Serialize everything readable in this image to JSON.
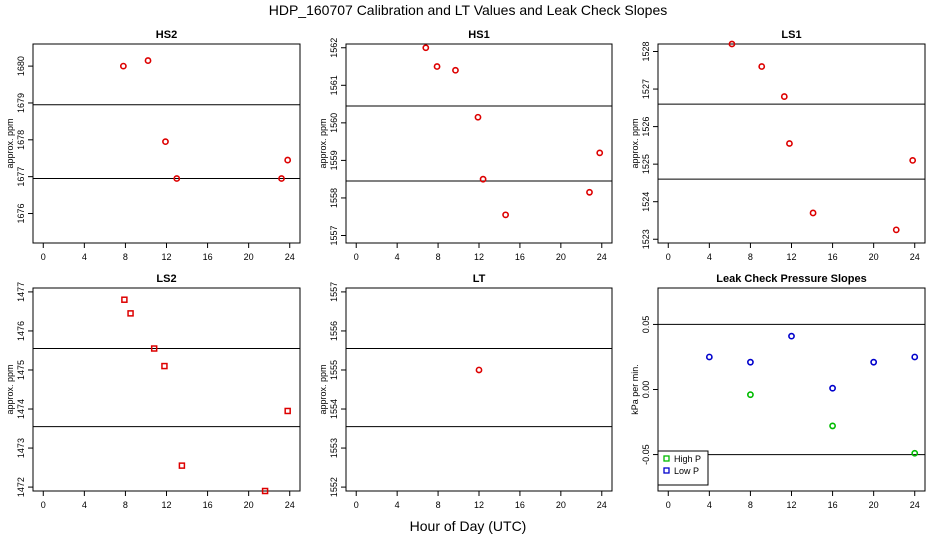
{
  "figure": {
    "title": "HDP_160707  Calibration and LT Values and Leak Check Slopes",
    "xlabel": "Hour of Day (UTC)"
  },
  "chart_data": [
    {
      "type": "scatter",
      "title": "HS2",
      "ylabel": "approx. ppm",
      "xlim": [
        -1,
        25
      ],
      "ylim": [
        1675.2,
        1680.6
      ],
      "xticks": [
        0,
        4,
        8,
        12,
        16,
        20,
        24
      ],
      "yticks": [
        1676,
        1677,
        1678,
        1679,
        1680
      ],
      "hlines": [
        1678.95,
        1676.95
      ],
      "series": [
        {
          "color": "#dd0000",
          "marker": "circle",
          "x": [
            7.8,
            10.2,
            11.9,
            13.0,
            23.2,
            23.8
          ],
          "y": [
            1680.0,
            1680.15,
            1677.95,
            1676.95,
            1676.95,
            1677.45
          ]
        }
      ]
    },
    {
      "type": "scatter",
      "title": "HS1",
      "ylabel": "approx. ppm",
      "xlim": [
        -1,
        25
      ],
      "ylim": [
        1556.8,
        1562.1
      ],
      "xticks": [
        0,
        4,
        8,
        12,
        16,
        20,
        24
      ],
      "yticks": [
        1557,
        1558,
        1559,
        1560,
        1561,
        1562
      ],
      "hlines": [
        1560.45,
        1558.45
      ],
      "series": [
        {
          "color": "#dd0000",
          "marker": "circle",
          "x": [
            6.8,
            7.9,
            9.7,
            11.9,
            12.4,
            14.6,
            22.8,
            23.8
          ],
          "y": [
            1562.0,
            1561.5,
            1561.4,
            1560.15,
            1558.5,
            1557.55,
            1558.15,
            1559.2
          ]
        }
      ]
    },
    {
      "type": "scatter",
      "title": "LS1",
      "ylabel": "approx. ppm",
      "xlim": [
        -1,
        25
      ],
      "ylim": [
        1522.9,
        1528.2
      ],
      "xticks": [
        0,
        4,
        8,
        12,
        16,
        20,
        24
      ],
      "yticks": [
        1523,
        1524,
        1525,
        1526,
        1527,
        1528
      ],
      "hlines": [
        1526.6,
        1524.6
      ],
      "series": [
        {
          "color": "#dd0000",
          "marker": "circle",
          "x": [
            6.2,
            9.1,
            11.3,
            11.8,
            14.1,
            22.2,
            23.8
          ],
          "y": [
            1528.2,
            1527.6,
            1526.8,
            1525.55,
            1523.7,
            1523.25,
            1525.1
          ]
        }
      ]
    },
    {
      "type": "scatter",
      "title": "LS2",
      "ylabel": "approx. ppm",
      "xlim": [
        -1,
        25
      ],
      "ylim": [
        1471.9,
        1477.1
      ],
      "xticks": [
        0,
        4,
        8,
        12,
        16,
        20,
        24
      ],
      "yticks": [
        1472,
        1473,
        1474,
        1475,
        1476,
        1477
      ],
      "hlines": [
        1475.55,
        1473.55
      ],
      "series": [
        {
          "color": "#dd0000",
          "marker": "square",
          "x": [
            7.9,
            8.5,
            10.8,
            11.8,
            13.5,
            21.6,
            23.8
          ],
          "y": [
            1476.8,
            1476.45,
            1475.55,
            1475.1,
            1472.55,
            1471.9,
            1473.95
          ]
        }
      ]
    },
    {
      "type": "scatter",
      "title": "LT",
      "ylabel": "approx. ppm",
      "xlim": [
        -1,
        25
      ],
      "ylim": [
        1551.9,
        1557.1
      ],
      "xticks": [
        0,
        4,
        8,
        12,
        16,
        20,
        24
      ],
      "yticks": [
        1552,
        1553,
        1554,
        1555,
        1556,
        1557
      ],
      "hlines": [
        1555.55,
        1553.55
      ],
      "series": [
        {
          "color": "#dd0000",
          "marker": "circle",
          "x": [
            12.0
          ],
          "y": [
            1555.0
          ]
        }
      ]
    },
    {
      "type": "scatter",
      "title": "Leak Check Pressure Slopes",
      "ylabel": "kPa per min.",
      "xlim": [
        -1,
        25
      ],
      "ylim": [
        -0.078,
        0.078
      ],
      "xticks": [
        0,
        4,
        8,
        12,
        16,
        20,
        24
      ],
      "yticks": [
        -0.05,
        0.0,
        0.05
      ],
      "ytick_labels": [
        "-0.05",
        "0.00",
        "0.05"
      ],
      "hlines": [
        0.05,
        -0.05
      ],
      "legend": {
        "position": "bottom-left"
      },
      "series": [
        {
          "name": "High P",
          "color": "#00bb00",
          "marker": "circle",
          "x": [
            8,
            16,
            24
          ],
          "y": [
            -0.004,
            -0.028,
            -0.049
          ]
        },
        {
          "name": "Low P",
          "color": "#0000cc",
          "marker": "circle",
          "x": [
            4,
            8,
            12,
            16,
            20,
            24
          ],
          "y": [
            0.025,
            0.021,
            0.041,
            0.001,
            0.021,
            0.025
          ]
        }
      ]
    }
  ]
}
